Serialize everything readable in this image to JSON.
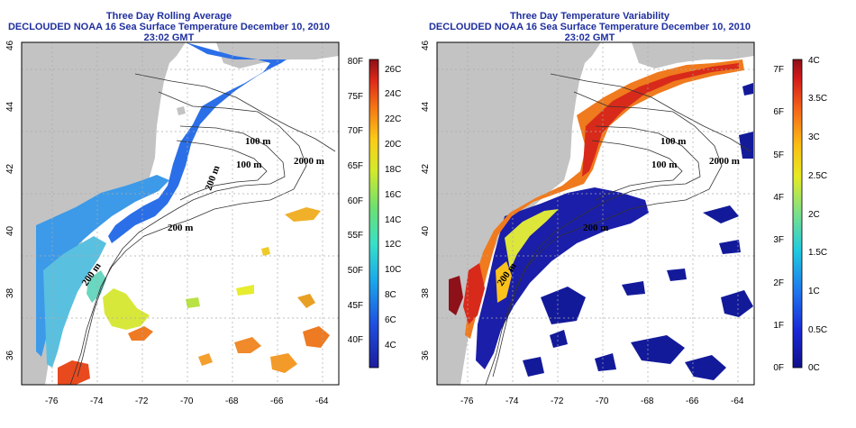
{
  "left": {
    "title_line1": "Three Day Rolling Average",
    "title_line2": "DECLOUDED NOAA 16 Sea Surface Temperature December 10, 2010 23:02 GMT",
    "x_ticks": [
      "-76",
      "-74",
      "-72",
      "-70",
      "-68",
      "-66",
      "-64"
    ],
    "y_ticks": [
      "36",
      "38",
      "40",
      "42",
      "44",
      "46"
    ],
    "contour_labels": [
      "100 m",
      "100 m",
      "2000 m",
      "200 m",
      "200 m",
      "200 m"
    ],
    "colorbar": {
      "f_labels": [
        "80F",
        "75F",
        "70F",
        "65F",
        "60F",
        "55F",
        "50F",
        "45F",
        "40F"
      ],
      "c_labels": [
        "26C",
        "24C",
        "22C",
        "20C",
        "18C",
        "16C",
        "14C",
        "12C",
        "10C",
        "8C",
        "6C",
        "4C"
      ]
    }
  },
  "right": {
    "title_line1": "Three Day Temperature Variability",
    "title_line2": "DECLOUDED NOAA 16 Sea Surface Temperature December 10, 2010 23:02 GMT",
    "x_ticks": [
      "-76",
      "-74",
      "-72",
      "-70",
      "-68",
      "-66",
      "-64"
    ],
    "y_ticks": [
      "36",
      "38",
      "40",
      "42",
      "44",
      "46"
    ],
    "contour_labels": [
      "100 m",
      "100 m",
      "2000 m",
      "200 m",
      "200 m"
    ],
    "colorbar": {
      "f_labels": [
        "7F",
        "6F",
        "5F",
        "4F",
        "3F",
        "2F",
        "1F",
        "0F"
      ],
      "c_labels": [
        "4C",
        "3.5C",
        "3C",
        "2.5C",
        "2C",
        "1.5C",
        "1C",
        "0.5C",
        "0C"
      ]
    }
  },
  "colors": {
    "title": "#1f2f9e",
    "land": "#c3c3c3",
    "ocean": "#ffffff",
    "grid": "#b0b0b0"
  }
}
